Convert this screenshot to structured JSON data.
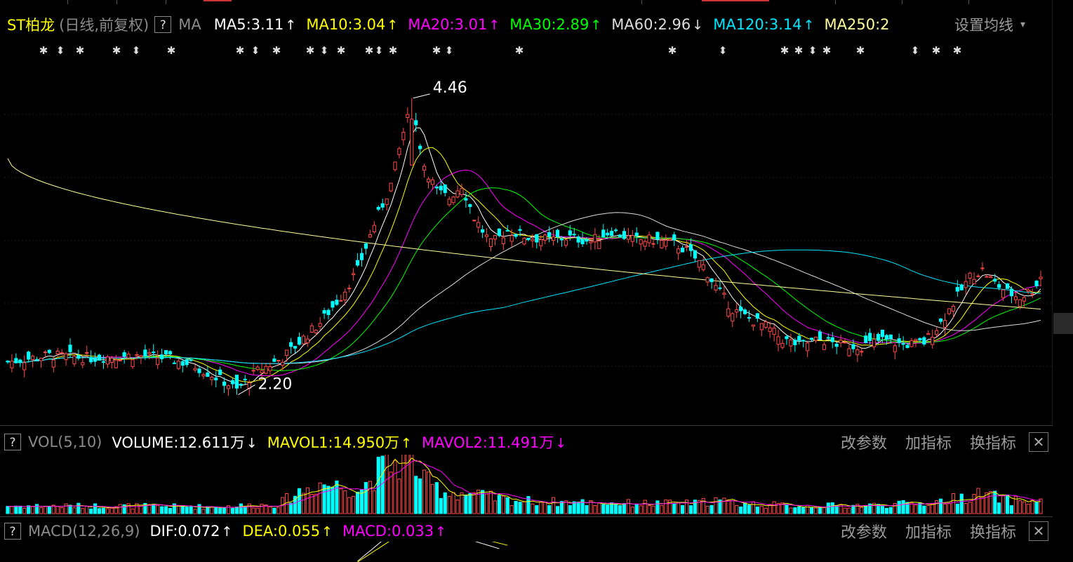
{
  "header": {
    "stock_name": "ST柏龙",
    "period": "(日线,前复权)",
    "help": "?",
    "indicator": "MA",
    "ma": [
      {
        "label": "MA5:3.11",
        "arrow": "↑",
        "color": "#ffffff"
      },
      {
        "label": "MA10:3.04",
        "arrow": "↑",
        "color": "#ffff00"
      },
      {
        "label": "MA20:3.01",
        "arrow": "↑",
        "color": "#ff00ff"
      },
      {
        "label": "MA30:2.89",
        "arrow": "↑",
        "color": "#00ff00"
      },
      {
        "label": "MA60:2.96",
        "arrow": "↓",
        "color": "#dcdcdc"
      },
      {
        "label": "MA120:3.14",
        "arrow": "↑",
        "color": "#00e5ff"
      },
      {
        "label": "MA250:2",
        "arrow": "",
        "color": "#ffff99"
      }
    ],
    "settings_label": "设置均线",
    "settings_arrow": "▾"
  },
  "vol_panel": {
    "help": "?",
    "name": "VOL(5,10)",
    "items": [
      {
        "label": "VOLUME:12.611万",
        "arrow": "↓",
        "color": "#ffffff"
      },
      {
        "label": "MAVOL1:14.950万",
        "arrow": "↑",
        "color": "#ffff00"
      },
      {
        "label": "MAVOL2:11.491万",
        "arrow": "↓",
        "color": "#ff00ff"
      }
    ],
    "buttons": [
      "改参数",
      "加指标",
      "换指标"
    ],
    "close": "✕"
  },
  "macd_panel": {
    "help": "?",
    "name": "MACD(12,26,9)",
    "items": [
      {
        "label": "DIF:0.072",
        "arrow": "↑",
        "color": "#ffffff"
      },
      {
        "label": "DEA:0.055",
        "arrow": "↑",
        "color": "#ffff00"
      },
      {
        "label": "MACD:0.033",
        "arrow": "↑",
        "color": "#ff00ff"
      }
    ],
    "buttons": [
      "改参数",
      "加指标",
      "换指标"
    ],
    "close": "✕"
  },
  "chart_data": {
    "type": "candlestick",
    "title": "ST柏龙",
    "annotations": [
      {
        "label": "4.46",
        "type": "high",
        "value": 4.46,
        "index": 97
      },
      {
        "label": "2.20",
        "type": "low",
        "value": 2.2,
        "index": 55
      }
    ],
    "price_range": [
      2.0,
      4.7
    ],
    "up_color": "#ff4a4a",
    "down_color": "#00ffff",
    "ma_colors": {
      "MA5": "#ffffff",
      "MA10": "#ffff00",
      "MA20": "#ff00ff",
      "MA30": "#00ff00",
      "MA60": "#dcdcdc",
      "MA120": "#00e5ff",
      "MA250": "#ffff99"
    },
    "close_anchors": [
      [
        0,
        2.45
      ],
      [
        10,
        2.5
      ],
      [
        20,
        2.48
      ],
      [
        30,
        2.5
      ],
      [
        38,
        2.48
      ],
      [
        45,
        2.42
      ],
      [
        52,
        2.3
      ],
      [
        55,
        2.24
      ],
      [
        60,
        2.38
      ],
      [
        66,
        2.48
      ],
      [
        70,
        2.6
      ],
      [
        75,
        2.75
      ],
      [
        80,
        2.95
      ],
      [
        84,
        3.15
      ],
      [
        88,
        3.5
      ],
      [
        92,
        3.8
      ],
      [
        95,
        4.2
      ],
      [
        97,
        4.4
      ],
      [
        100,
        3.95
      ],
      [
        103,
        3.75
      ],
      [
        106,
        3.7
      ],
      [
        109,
        3.8
      ],
      [
        112,
        3.55
      ],
      [
        116,
        3.35
      ],
      [
        120,
        3.45
      ],
      [
        125,
        3.4
      ],
      [
        130,
        3.38
      ],
      [
        135,
        3.4
      ],
      [
        140,
        3.37
      ],
      [
        145,
        3.45
      ],
      [
        150,
        3.38
      ],
      [
        155,
        3.38
      ],
      [
        160,
        3.35
      ],
      [
        163,
        3.3
      ],
      [
        167,
        3.18
      ],
      [
        170,
        3.02
      ],
      [
        174,
        2.85
      ],
      [
        178,
        2.78
      ],
      [
        182,
        2.72
      ],
      [
        186,
        2.62
      ],
      [
        190,
        2.58
      ],
      [
        195,
        2.62
      ],
      [
        200,
        2.58
      ],
      [
        205,
        2.57
      ],
      [
        210,
        2.62
      ],
      [
        215,
        2.58
      ],
      [
        220,
        2.6
      ],
      [
        224,
        2.75
      ],
      [
        228,
        2.95
      ],
      [
        231,
        3.1
      ],
      [
        234,
        3.15
      ],
      [
        237,
        3.05
      ],
      [
        240,
        2.98
      ],
      [
        243,
        2.94
      ],
      [
        246,
        3.0
      ],
      [
        248,
        3.1
      ]
    ],
    "volume_anchors": [
      [
        0,
        0.9
      ],
      [
        30,
        0.9
      ],
      [
        50,
        0.8
      ],
      [
        65,
        1.1
      ],
      [
        70,
        2.6
      ],
      [
        75,
        3.6
      ],
      [
        80,
        3.2
      ],
      [
        85,
        3.0
      ],
      [
        88,
        4.5
      ],
      [
        91,
        5.8
      ],
      [
        95,
        6.2
      ],
      [
        97,
        6.6
      ],
      [
        100,
        3.8
      ],
      [
        105,
        2.6
      ],
      [
        110,
        2.4
      ],
      [
        120,
        1.6
      ],
      [
        130,
        1.4
      ],
      [
        150,
        1.2
      ],
      [
        165,
        1.2
      ],
      [
        170,
        1.6
      ],
      [
        175,
        1.2
      ],
      [
        190,
        0.9
      ],
      [
        210,
        1.0
      ],
      [
        222,
        1.3
      ],
      [
        230,
        2.0
      ],
      [
        234,
        2.3
      ],
      [
        240,
        1.6
      ],
      [
        248,
        1.4
      ]
    ],
    "macd_dif_anchors": [
      [
        84,
        -0.05
      ],
      [
        92,
        0.28
      ],
      [
        97,
        0.36
      ],
      [
        104,
        0.32
      ],
      [
        110,
        0.22
      ],
      [
        118,
        0.1
      ]
    ],
    "macd_dea_anchors": [
      [
        84,
        -0.06
      ],
      [
        92,
        0.2
      ],
      [
        98,
        0.3
      ],
      [
        105,
        0.3
      ],
      [
        112,
        0.24
      ],
      [
        120,
        0.14
      ]
    ]
  }
}
